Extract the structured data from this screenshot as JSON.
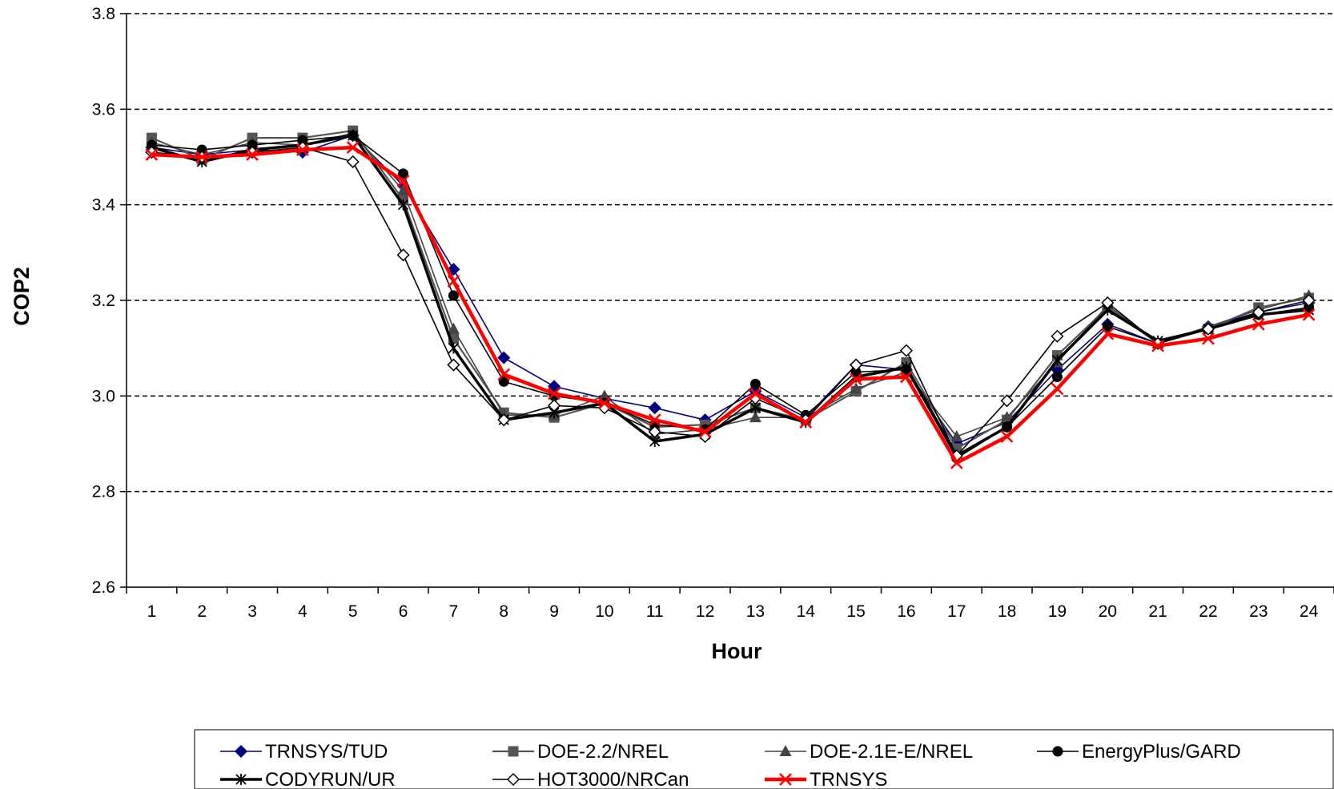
{
  "chart_data": {
    "type": "line",
    "xlabel": "Hour",
    "ylabel": "COP2",
    "xlim": [
      1,
      24
    ],
    "ylim": [
      2.6,
      3.8
    ],
    "yticks": [
      "2.6",
      "2.8",
      "3.0",
      "3.2",
      "3.4",
      "3.6",
      "3.8"
    ],
    "ytick_values": [
      2.6,
      2.8,
      3.0,
      3.2,
      3.4,
      3.6,
      3.8
    ],
    "x": [
      "1",
      "2",
      "3",
      "4",
      "5",
      "6",
      "7",
      "8",
      "9",
      "10",
      "11",
      "12",
      "13",
      "14",
      "15",
      "16",
      "17",
      "18",
      "19",
      "20",
      "21",
      "22",
      "23",
      "24"
    ],
    "grid": "horizontal dashed",
    "legend_position": "bottom",
    "series": [
      {
        "name": "TRNSYS/TUD",
        "color": "#00007f",
        "marker": "diamond",
        "width": 1.6,
        "values": [
          3.52,
          3.505,
          3.515,
          3.51,
          3.545,
          3.44,
          3.265,
          3.08,
          3.02,
          2.995,
          2.975,
          2.95,
          3.01,
          2.955,
          3.065,
          3.055,
          2.9,
          2.945,
          3.055,
          3.15,
          3.11,
          3.145,
          3.175,
          3.195
        ]
      },
      {
        "name": "DOE-2.2/NREL",
        "color": "#555555",
        "marker": "square",
        "width": 2.2,
        "values": [
          3.54,
          3.495,
          3.54,
          3.54,
          3.555,
          3.41,
          3.12,
          2.965,
          2.955,
          2.985,
          2.935,
          2.94,
          2.975,
          2.95,
          3.01,
          3.07,
          2.89,
          2.95,
          3.085,
          3.185,
          3.11,
          3.14,
          3.185,
          3.205
        ]
      },
      {
        "name": "DOE-2.1E-E/NREL",
        "color": "#444444",
        "marker": "triangle",
        "width": 1.6,
        "values": [
          3.53,
          3.505,
          3.53,
          3.525,
          3.55,
          3.43,
          3.14,
          2.96,
          2.96,
          3.0,
          2.92,
          2.93,
          2.955,
          2.955,
          3.015,
          3.05,
          2.915,
          2.955,
          3.07,
          3.19,
          3.11,
          3.145,
          3.18,
          3.21
        ]
      },
      {
        "name": "EnergyPlus/GARD",
        "color": "#000000",
        "marker": "circle",
        "width": 1.6,
        "values": [
          3.525,
          3.515,
          3.525,
          3.535,
          3.545,
          3.465,
          3.21,
          3.03,
          3.0,
          2.985,
          2.94,
          2.93,
          3.025,
          2.96,
          3.05,
          3.055,
          2.87,
          2.935,
          3.04,
          3.145,
          3.11,
          3.14,
          3.17,
          3.185
        ]
      },
      {
        "name": "CODYRUN/UR",
        "color": "#000000",
        "marker": "star",
        "width": 3.5,
        "values": [
          3.52,
          3.49,
          3.515,
          3.525,
          3.545,
          3.4,
          3.1,
          2.95,
          2.965,
          2.985,
          2.905,
          2.92,
          2.975,
          2.945,
          3.04,
          3.06,
          2.875,
          2.935,
          3.075,
          3.18,
          3.115,
          3.14,
          3.17,
          3.18
        ]
      },
      {
        "name": "HOT3000/NRCan",
        "color": "#000000",
        "marker": "open-diamond",
        "width": 1.6,
        "values": [
          3.51,
          3.5,
          3.51,
          3.52,
          3.49,
          3.295,
          3.065,
          2.95,
          2.98,
          2.975,
          2.925,
          2.915,
          2.995,
          2.95,
          3.065,
          3.095,
          2.875,
          2.99,
          3.125,
          3.195,
          3.11,
          3.14,
          3.175,
          3.2
        ]
      },
      {
        "name": "TRNSYS",
        "color": "#ff0000",
        "marker": "x",
        "width": 4.5,
        "values": [
          3.505,
          3.5,
          3.505,
          3.515,
          3.52,
          3.45,
          3.24,
          3.045,
          3.005,
          2.985,
          2.95,
          2.925,
          3.005,
          2.945,
          3.035,
          3.04,
          2.86,
          2.915,
          3.015,
          3.13,
          3.105,
          3.12,
          3.15,
          3.17
        ]
      }
    ]
  }
}
